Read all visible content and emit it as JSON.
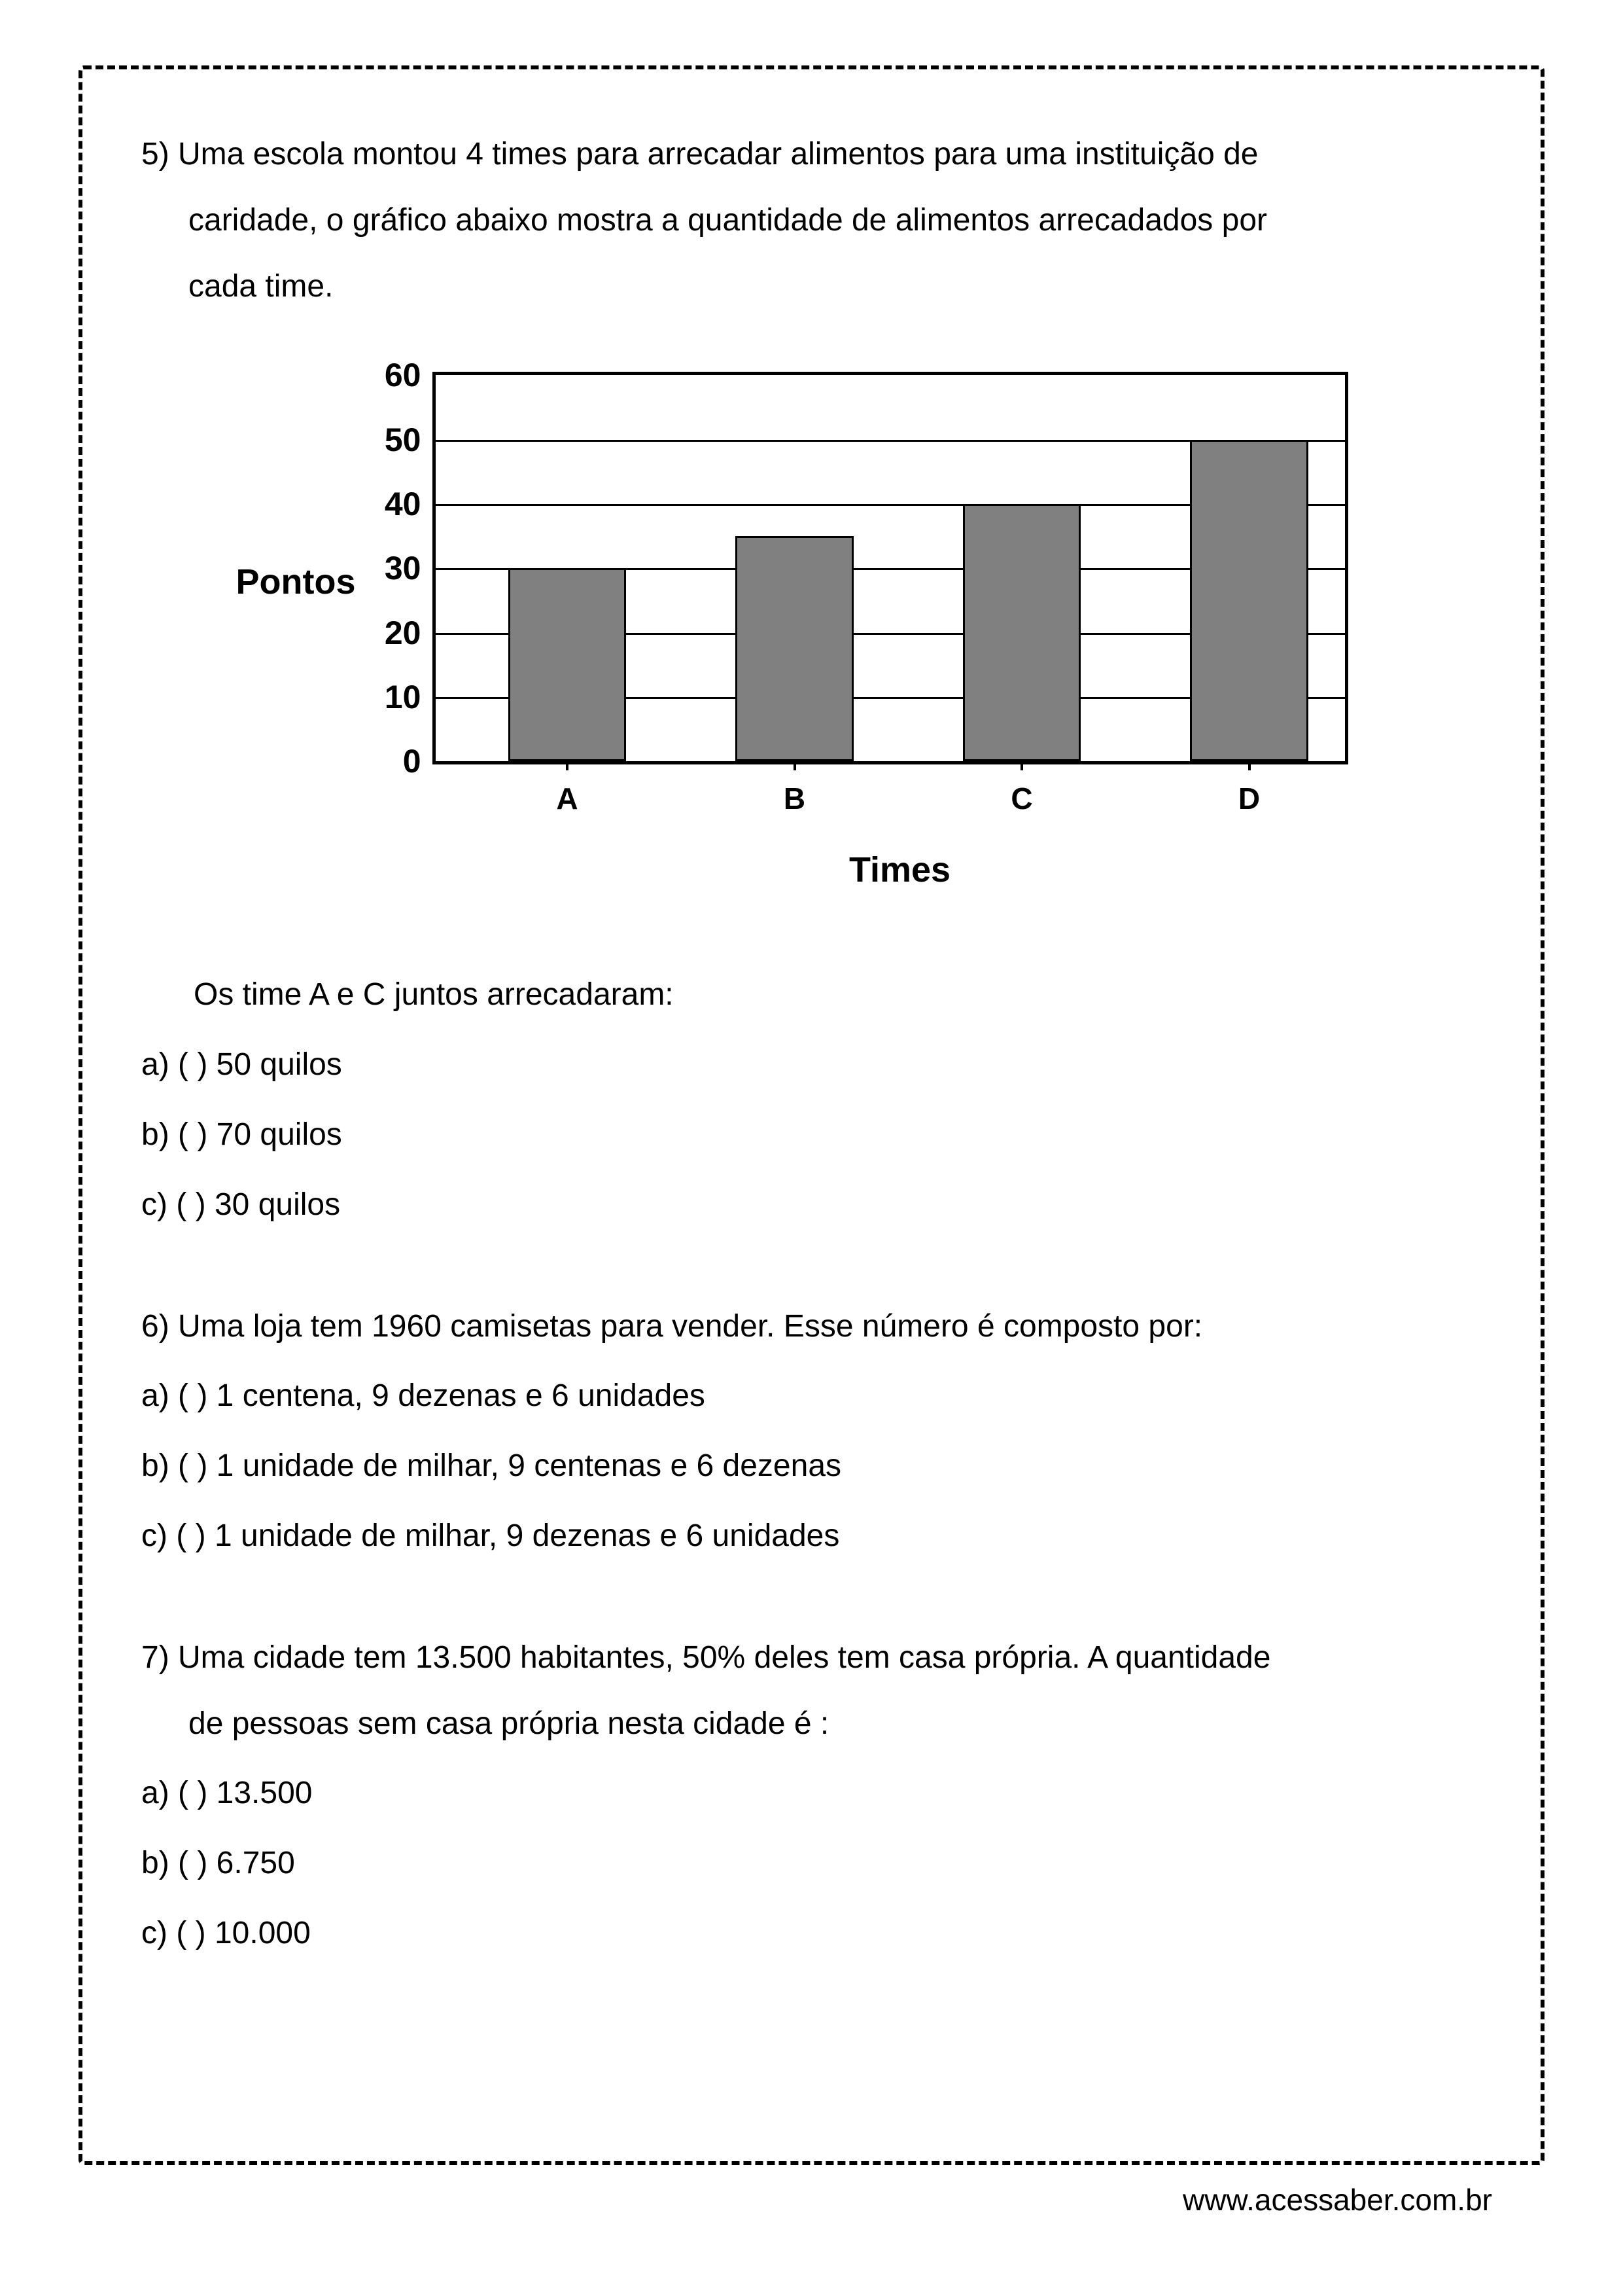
{
  "questions": {
    "q5": {
      "number": "5)",
      "text_line1": "5) Uma escola montou 4 times para arrecadar alimentos para uma instituição de",
      "text_line2": "caridade, o gráfico abaixo mostra a quantidade de alimentos arrecadados por",
      "text_line3": "cada time.",
      "sub_question": "Os time A e C juntos arrecadaram:",
      "options": {
        "a": "a) (     ) 50 quilos",
        "b": "b) (     ) 70 quilos",
        "c": "c) (     ) 30 quilos"
      }
    },
    "q6": {
      "text": "6) Uma loja tem 1960 camisetas para vender. Esse número é composto por:",
      "options": {
        "a": "a) (     ) 1 centena, 9 dezenas e 6 unidades",
        "b": "b) (     ) 1 unidade de milhar, 9 centenas e 6 dezenas",
        "c": "c) (     ) 1 unidade de milhar, 9 dezenas e 6 unidades"
      }
    },
    "q7": {
      "text_line1": "7) Uma cidade tem 13.500 habitantes, 50% deles tem casa própria. A quantidade",
      "text_line2": "de pessoas sem casa própria nesta cidade é :",
      "options": {
        "a": "a) (     ) 13.500",
        "b": "b) (     ) 6.750",
        "c": "c) (     ) 10.000"
      }
    }
  },
  "chart": {
    "type": "bar",
    "ylabel": "Pontos",
    "xlabel": "Times",
    "ylim_max": 60,
    "yticks": [
      {
        "value": 0,
        "label": "0"
      },
      {
        "value": 10,
        "label": "10"
      },
      {
        "value": 20,
        "label": "20"
      },
      {
        "value": 30,
        "label": "30"
      },
      {
        "value": 40,
        "label": "40"
      },
      {
        "value": 50,
        "label": "50"
      },
      {
        "value": 60,
        "label": "60"
      }
    ],
    "bars": [
      {
        "category": "A",
        "value": 30,
        "left_pct": 8,
        "width_pct": 13
      },
      {
        "category": "B",
        "value": 35,
        "left_pct": 33,
        "width_pct": 13
      },
      {
        "category": "C",
        "value": 40,
        "left_pct": 58,
        "width_pct": 13
      },
      {
        "category": "D",
        "value": 50,
        "left_pct": 83,
        "width_pct": 13
      }
    ],
    "bar_color": "#808080",
    "bar_border_color": "#000000",
    "grid_color": "#000000",
    "background_color": "#ffffff",
    "font_family": "Arial",
    "ylabel_fontsize": 54,
    "xlabel_fontsize": 54,
    "tick_fontsize": 48
  },
  "footer": {
    "url": "www.acessaber.com.br"
  }
}
